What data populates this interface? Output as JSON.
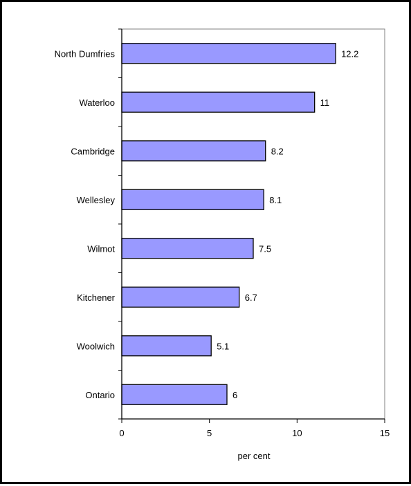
{
  "chart_data": {
    "type": "bar",
    "orientation": "horizontal",
    "categories": [
      "North Dumfries",
      "Waterloo",
      "Cambridge",
      "Wellesley",
      "Wilmot",
      "Kitchener",
      "Woolwich",
      "Ontario"
    ],
    "values": [
      12.2,
      11,
      8.2,
      8.1,
      7.5,
      6.7,
      5.1,
      6
    ],
    "value_labels": [
      "12.2",
      "11",
      "8.2",
      "8.1",
      "7.5",
      "6.7",
      "5.1",
      "6"
    ],
    "xlabel": "per cent",
    "ylabel": "",
    "title": "",
    "xlim": [
      0,
      15
    ],
    "xticks": [
      0,
      5,
      10,
      15
    ],
    "xtick_labels": [
      "0",
      "5",
      "10",
      "15"
    ],
    "grid": false,
    "legend": "none",
    "colors": {
      "bar_fill": "#9999ff",
      "bar_stroke": "#000000",
      "plot_border": "#808080",
      "axis": "#000000"
    }
  }
}
